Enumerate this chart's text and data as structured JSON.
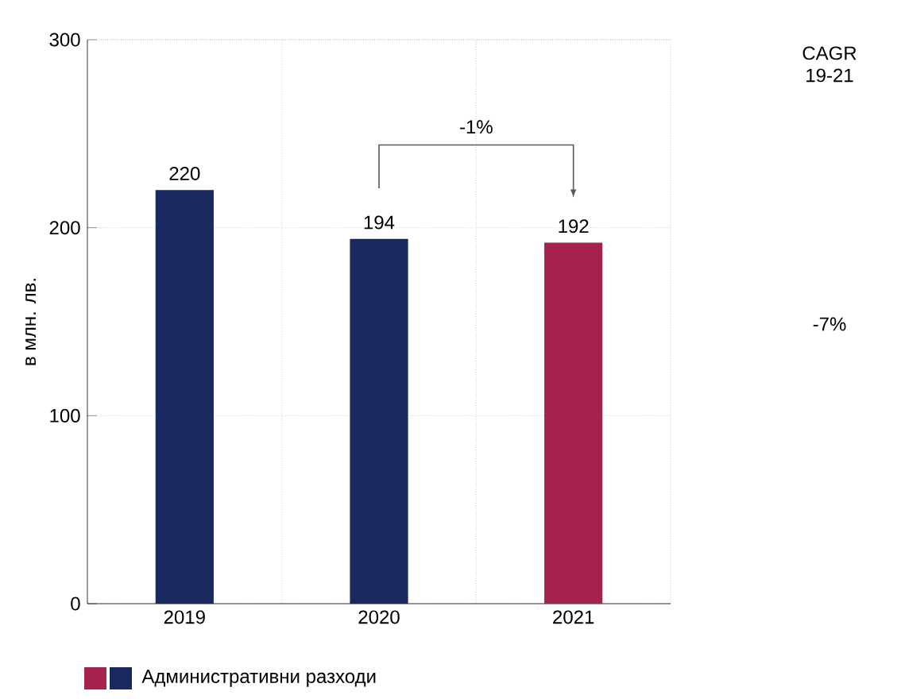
{
  "chart_data": {
    "type": "bar",
    "categories": [
      "2019",
      "2020",
      "2021"
    ],
    "series": [
      {
        "name": "Административни разходи",
        "values": [
          220,
          194,
          192
        ],
        "colors": [
          "#1b2a5e",
          "#1b2a5e",
          "#a6224e"
        ]
      }
    ],
    "ylabel": "в млн. лв.",
    "ylim": [
      0,
      300
    ],
    "yticks": [
      0,
      100,
      200,
      300
    ],
    "grid": true,
    "data_labels": true,
    "legend": "bottom",
    "annotations": [
      "-1%",
      "CAGR 19-21",
      "-7%"
    ]
  }
}
